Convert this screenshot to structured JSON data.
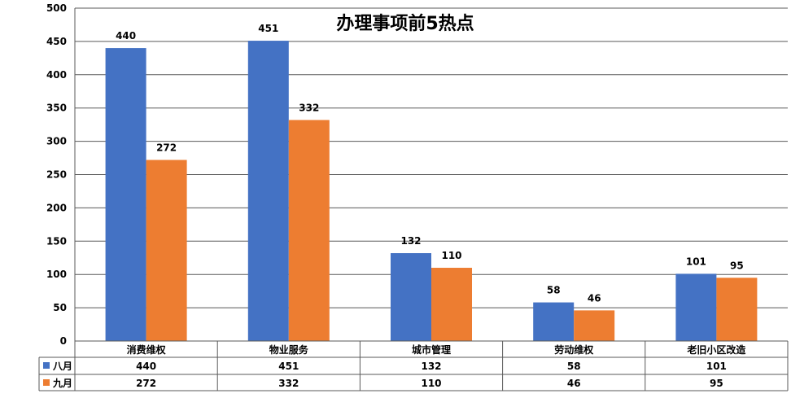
{
  "chart_data": {
    "type": "bar",
    "title": "办理事项前5热点",
    "categories": [
      "消费维权",
      "物业服务",
      "城市管理",
      "劳动维权",
      "老旧小区改造"
    ],
    "series": [
      {
        "name": "八月",
        "color": "#4472C4",
        "values": [
          440,
          451,
          132,
          58,
          101
        ]
      },
      {
        "name": "九月",
        "color": "#ED7D31",
        "values": [
          272,
          332,
          110,
          46,
          95
        ]
      }
    ],
    "ylim": [
      0,
      500
    ],
    "yticks": [
      0,
      50,
      100,
      150,
      200,
      250,
      300,
      350,
      400,
      450,
      500
    ],
    "grid": true,
    "legend": "data-table"
  }
}
